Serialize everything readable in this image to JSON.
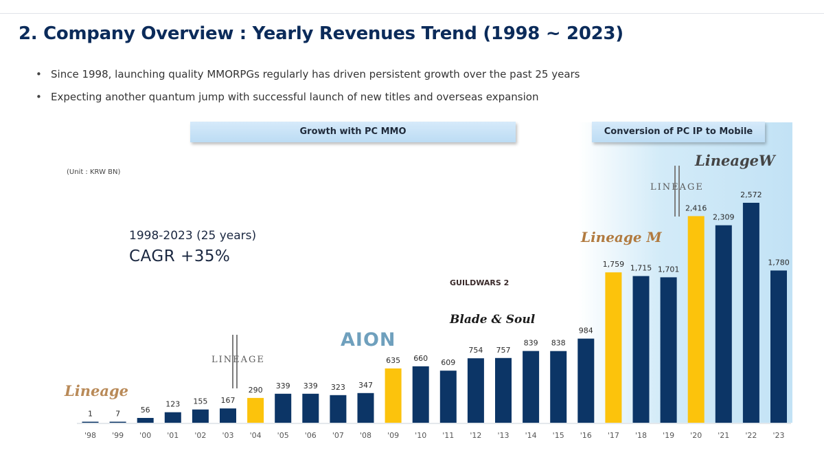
{
  "header": {
    "title": "2. Company Overview : Yearly Revenues Trend (1998 ~ 2023)",
    "bullets": [
      "Since 1998, launching quality MMORPGs regularly has driven persistent growth over the past 25 years",
      "Expecting another quantum jump with successful launch of new titles and overseas expansion"
    ]
  },
  "banners": {
    "pc": "Growth with PC MMO",
    "mobile": "Conversion of PC IP to Mobile"
  },
  "unit": "(Unit : KRW BN)",
  "cagr": {
    "period": "1998-2023 (25 years)",
    "value": "CAGR  +35%"
  },
  "colors": {
    "navy": "#0c3566",
    "highlight": "#fcc30c",
    "title": "#0b2b5a"
  },
  "logos": [
    {
      "name": "lineage-logo",
      "text": "Lineage"
    },
    {
      "name": "lineage2-logo",
      "text": "LINEAGE"
    },
    {
      "name": "aion-logo",
      "text": "AION"
    },
    {
      "name": "guildwars2-logo",
      "text": "GUILDWARS 2"
    },
    {
      "name": "bladesoul-logo",
      "text": "Blade & Soul"
    },
    {
      "name": "lineagem-logo",
      "text": "Lineage M"
    },
    {
      "name": "lineage2m-logo",
      "text": "LINEAGE"
    },
    {
      "name": "lineagew-logo",
      "text": "LineageW"
    }
  ],
  "chart_data": {
    "type": "bar",
    "categories": [
      "'98",
      "'99",
      "'00",
      "'01",
      "'02",
      "'03",
      "'04",
      "'05",
      "'06",
      "'07",
      "'08",
      "'09",
      "'10",
      "'11",
      "'12",
      "'13",
      "'14",
      "'15",
      "'16",
      "'17",
      "'18",
      "'19",
      "'20",
      "'21",
      "'22",
      "'23"
    ],
    "values": [
      1,
      7,
      56,
      123,
      155,
      167,
      290,
      339,
      339,
      323,
      347,
      635,
      660,
      609,
      754,
      757,
      839,
      838,
      984,
      1759,
      1715,
      1701,
      2416,
      2309,
      2572,
      1780
    ],
    "data_labels": [
      "1",
      "7",
      "56",
      "123",
      "155",
      "167",
      "290",
      "339",
      "339",
      "323",
      "347",
      "635",
      "660",
      "609",
      "754",
      "757",
      "839",
      "838",
      "984",
      "1,759",
      "1,715",
      "1,701",
      "2,416",
      "2,309",
      "2,572",
      "1,780"
    ],
    "highlighted": [
      "'04",
      "'09",
      "'17",
      "'20"
    ],
    "ylabel": "",
    "ylim": [
      0,
      2572
    ]
  }
}
